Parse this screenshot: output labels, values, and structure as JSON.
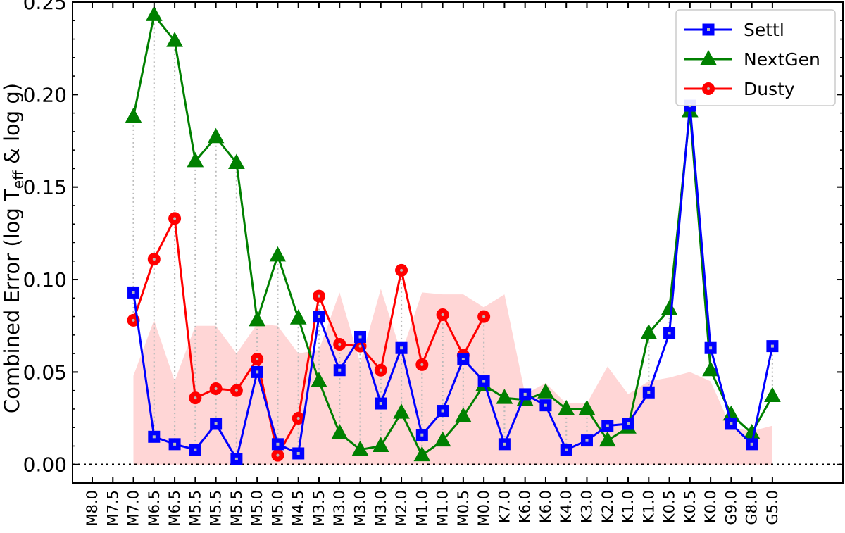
{
  "chart_data": {
    "type": "line",
    "xlabel": "",
    "ylabel": "Combined Error (log T",
    "ylabel_sub": "eff",
    "ylabel_tail": " & log g)",
    "ylim": [
      -0.01,
      0.25
    ],
    "yticks": [
      "0.00",
      "0.05",
      "0.10",
      "0.15",
      "0.20",
      "0.25"
    ],
    "ytick_values": [
      0.0,
      0.05,
      0.1,
      0.15,
      0.2,
      0.25
    ],
    "categories": [
      "M8.0",
      "M7.5",
      "M7.0",
      "M6.5",
      "M6.5",
      "M5.5",
      "M5.5",
      "M5.5",
      "M5.0",
      "M5.0",
      "M4.5",
      "M3.5",
      "M3.0",
      "M3.0",
      "M3.0",
      "M2.0",
      "M1.0",
      "M1.0",
      "M0.5",
      "M0.0",
      "K7.0",
      "K6.0",
      "K6.0",
      "K4.0",
      "K3.0",
      "K2.0",
      "K1.0",
      "K1.0",
      "K0.5",
      "K0.5",
      "K0.0",
      "G9.0",
      "G8.0",
      "G5.0"
    ],
    "grid": false,
    "legend_position": "top-right",
    "zero_line": "dotted",
    "series": [
      {
        "name": "Settl",
        "color": "#0000ff",
        "marker": "square",
        "values": [
          null,
          null,
          0.093,
          0.015,
          0.011,
          0.008,
          0.022,
          0.003,
          0.05,
          0.011,
          0.006,
          0.08,
          0.051,
          0.069,
          0.033,
          0.063,
          0.016,
          0.029,
          0.057,
          0.045,
          0.011,
          0.038,
          0.032,
          0.008,
          0.013,
          0.021,
          0.022,
          0.039,
          0.071,
          0.194,
          0.063,
          0.022,
          0.011,
          0.064
        ]
      },
      {
        "name": "NextGen",
        "color": "#008000",
        "marker": "triangle",
        "values": [
          null,
          null,
          0.188,
          0.243,
          0.229,
          0.164,
          0.177,
          0.163,
          0.078,
          0.113,
          0.079,
          0.045,
          0.017,
          0.008,
          0.01,
          0.028,
          0.005,
          0.013,
          0.026,
          0.043,
          0.036,
          0.035,
          0.039,
          0.03,
          0.03,
          0.013,
          0.02,
          0.071,
          0.084,
          0.191,
          0.051,
          0.027,
          0.017,
          0.037
        ]
      },
      {
        "name": "Dusty",
        "color": "#ff0000",
        "marker": "circle",
        "values": [
          null,
          null,
          0.078,
          0.111,
          0.133,
          0.036,
          0.041,
          0.04,
          0.057,
          0.005,
          0.025,
          0.091,
          0.065,
          0.064,
          0.051,
          0.105,
          0.054,
          0.081,
          0.059,
          0.08,
          null,
          null,
          null,
          null,
          null,
          null,
          null,
          null,
          null,
          null,
          null,
          null,
          null,
          null
        ]
      }
    ],
    "shaded_region": {
      "color": "#ffd6d6",
      "upper": [
        null,
        null,
        0.048,
        0.078,
        0.045,
        0.075,
        0.075,
        0.06,
        0.076,
        0.075,
        0.06,
        0.062,
        0.093,
        0.055,
        0.095,
        0.06,
        0.093,
        0.092,
        0.092,
        0.085,
        0.092,
        0.038,
        0.044,
        0.033,
        0.033,
        0.053,
        0.038,
        0.045,
        0.047,
        0.05,
        0.045,
        0.02,
        0.018,
        0.021
      ]
    }
  }
}
